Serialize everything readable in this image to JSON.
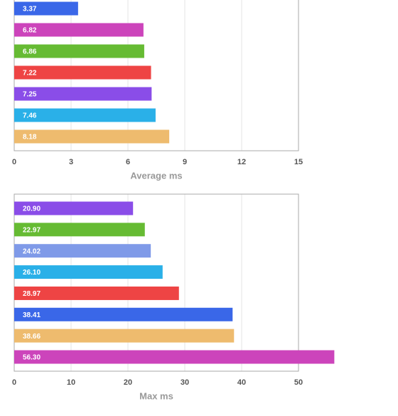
{
  "chart_data": [
    {
      "type": "bar",
      "orientation": "horizontal",
      "x_label": "Average ms",
      "values": [
        3.37,
        6.82,
        6.86,
        7.22,
        7.25,
        7.46,
        8.18
      ],
      "colors": [
        "#3a67e8",
        "#cc44bb",
        "#66bb33",
        "#ee4444",
        "#8a4de8",
        "#2ab0e8",
        "#eebb6e"
      ],
      "xlim": [
        0,
        15
      ],
      "xticks": [
        0,
        3,
        6,
        9,
        12,
        15
      ],
      "grid": true
    },
    {
      "type": "bar",
      "orientation": "horizontal",
      "x_label": "Max ms",
      "values": [
        20.9,
        22.97,
        24.02,
        26.1,
        28.97,
        38.41,
        38.66,
        56.3
      ],
      "value_labels": [
        "20.90",
        "22.97",
        "24.02",
        "26.10",
        "28.97",
        "38.41",
        "38.66",
        "56.30"
      ],
      "colors": [
        "#8a4de8",
        "#66bb33",
        "#7f9ae8",
        "#2ab0e8",
        "#ee4444",
        "#3a67e8",
        "#eebb6e",
        "#cc44bb"
      ],
      "xlim": [
        0,
        50
      ],
      "xticks": [
        0,
        10,
        20,
        30,
        40,
        50
      ],
      "grid": true
    }
  ]
}
